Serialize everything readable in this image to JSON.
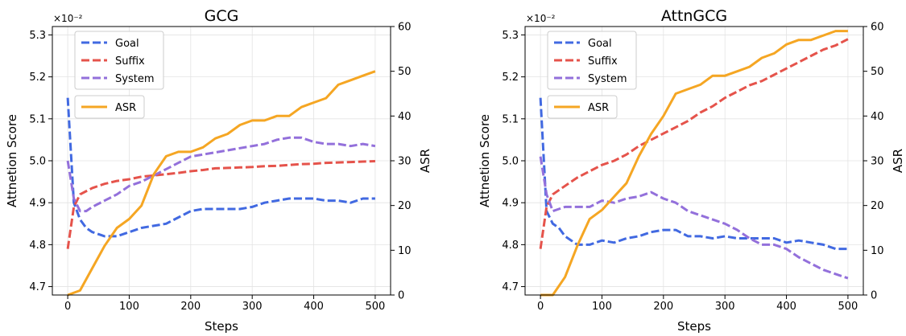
{
  "chart_data": [
    {
      "type": "line",
      "title": "GCG",
      "xlabel": "Steps",
      "ylabel": "Attnetion Score",
      "y2label": "ASR",
      "y_multiplier": "×10⁻²",
      "xlim": [
        -25,
        525
      ],
      "ylim": [
        4.68,
        5.32
      ],
      "y2lim": [
        0,
        60
      ],
      "xticks": [
        0,
        100,
        200,
        300,
        400,
        500
      ],
      "yticks": [
        4.7,
        4.8,
        4.9,
        5.0,
        5.1,
        5.2,
        5.3
      ],
      "y2ticks": [
        0,
        10,
        20,
        30,
        40,
        50,
        60
      ],
      "grid": true,
      "legend_position": "top-left",
      "series": [
        {
          "name": "Goal",
          "axis": "left",
          "style": "dashed",
          "color": "#4169E1",
          "x": [
            0,
            10,
            20,
            30,
            40,
            60,
            80,
            100,
            120,
            140,
            160,
            180,
            200,
            220,
            240,
            260,
            280,
            300,
            320,
            340,
            360,
            380,
            400,
            420,
            440,
            460,
            480,
            500
          ],
          "y": [
            5.15,
            4.9,
            4.86,
            4.84,
            4.83,
            4.82,
            4.82,
            4.83,
            4.84,
            4.845,
            4.85,
            4.865,
            4.88,
            4.885,
            4.885,
            4.885,
            4.885,
            4.89,
            4.9,
            4.905,
            4.91,
            4.91,
            4.91,
            4.905,
            4.905,
            4.9,
            4.91,
            4.91
          ]
        },
        {
          "name": "Suffix",
          "axis": "left",
          "style": "dashed",
          "color": "#E5534B",
          "x": [
            0,
            10,
            20,
            40,
            60,
            80,
            100,
            120,
            140,
            160,
            180,
            200,
            220,
            240,
            260,
            280,
            300,
            320,
            340,
            360,
            380,
            400,
            420,
            440,
            460,
            480,
            500
          ],
          "y": [
            4.79,
            4.89,
            4.92,
            4.935,
            4.945,
            4.952,
            4.956,
            4.962,
            4.965,
            4.968,
            4.971,
            4.975,
            4.978,
            4.982,
            4.983,
            4.984,
            4.985,
            4.987,
            4.988,
            4.99,
            4.992,
            4.993,
            4.995,
            4.996,
            4.997,
            4.998,
            4.999
          ]
        },
        {
          "name": "System",
          "axis": "left",
          "style": "dashed",
          "color": "#9370DB",
          "x": [
            0,
            10,
            20,
            30,
            40,
            60,
            80,
            100,
            120,
            140,
            160,
            180,
            200,
            220,
            240,
            260,
            280,
            300,
            320,
            340,
            360,
            380,
            400,
            420,
            440,
            460,
            480,
            500
          ],
          "y": [
            5.0,
            4.91,
            4.88,
            4.88,
            4.89,
            4.905,
            4.92,
            4.94,
            4.95,
            4.965,
            4.98,
            4.995,
            5.01,
            5.015,
            5.02,
            5.025,
            5.03,
            5.035,
            5.04,
            5.05,
            5.055,
            5.055,
            5.045,
            5.04,
            5.04,
            5.035,
            5.04,
            5.035
          ]
        },
        {
          "name": "ASR",
          "axis": "right",
          "style": "solid",
          "color": "#F5A623",
          "x": [
            0,
            20,
            40,
            60,
            80,
            100,
            120,
            140,
            160,
            180,
            200,
            220,
            240,
            260,
            280,
            300,
            320,
            340,
            360,
            380,
            400,
            420,
            440,
            460,
            480,
            500
          ],
          "y": [
            0,
            1,
            6,
            11,
            15,
            17,
            20,
            27,
            31,
            32,
            32,
            33,
            35,
            36,
            38,
            39,
            39,
            40,
            40,
            42,
            43,
            44,
            47,
            48,
            49,
            50
          ]
        }
      ]
    },
    {
      "type": "line",
      "title": "AttnGCG",
      "xlabel": "Steps",
      "ylabel": "Attnetion Score",
      "y2label": "ASR",
      "y_multiplier": "×10⁻²",
      "xlim": [
        -25,
        525
      ],
      "ylim": [
        4.68,
        5.32
      ],
      "y2lim": [
        0,
        60
      ],
      "xticks": [
        0,
        100,
        200,
        300,
        400,
        500
      ],
      "yticks": [
        4.7,
        4.8,
        4.9,
        5.0,
        5.1,
        5.2,
        5.3
      ],
      "y2ticks": [
        0,
        10,
        20,
        30,
        40,
        50,
        60
      ],
      "grid": true,
      "legend_position": "top-left",
      "series": [
        {
          "name": "Goal",
          "axis": "left",
          "style": "dashed",
          "color": "#4169E1",
          "x": [
            0,
            10,
            20,
            30,
            40,
            60,
            80,
            100,
            120,
            140,
            160,
            180,
            200,
            220,
            240,
            260,
            280,
            300,
            320,
            340,
            360,
            380,
            400,
            420,
            440,
            460,
            480,
            500
          ],
          "y": [
            5.15,
            4.88,
            4.85,
            4.84,
            4.82,
            4.8,
            4.8,
            4.81,
            4.805,
            4.815,
            4.82,
            4.83,
            4.835,
            4.835,
            4.82,
            4.82,
            4.815,
            4.82,
            4.815,
            4.815,
            4.815,
            4.815,
            4.805,
            4.81,
            4.805,
            4.8,
            4.79,
            4.79
          ]
        },
        {
          "name": "Suffix",
          "axis": "left",
          "style": "dashed",
          "color": "#E5534B",
          "x": [
            0,
            10,
            20,
            40,
            60,
            80,
            100,
            120,
            140,
            160,
            180,
            200,
            220,
            240,
            260,
            280,
            300,
            320,
            340,
            360,
            380,
            400,
            420,
            440,
            460,
            480,
            500
          ],
          "y": [
            4.79,
            4.89,
            4.92,
            4.94,
            4.96,
            4.975,
            4.99,
            5.0,
            5.015,
            5.035,
            5.05,
            5.065,
            5.08,
            5.095,
            5.115,
            5.13,
            5.15,
            5.165,
            5.18,
            5.19,
            5.205,
            5.22,
            5.235,
            5.25,
            5.265,
            5.275,
            5.29
          ]
        },
        {
          "name": "System",
          "axis": "left",
          "style": "dashed",
          "color": "#9370DB",
          "x": [
            0,
            10,
            20,
            30,
            40,
            60,
            80,
            100,
            120,
            140,
            160,
            180,
            200,
            220,
            240,
            260,
            280,
            300,
            320,
            340,
            360,
            380,
            400,
            420,
            440,
            460,
            480,
            500
          ],
          "y": [
            5.01,
            4.92,
            4.88,
            4.885,
            4.89,
            4.89,
            4.89,
            4.905,
            4.9,
            4.91,
            4.915,
            4.925,
            4.91,
            4.9,
            4.88,
            4.87,
            4.86,
            4.85,
            4.835,
            4.815,
            4.8,
            4.8,
            4.79,
            4.77,
            4.755,
            4.74,
            4.73,
            4.72
          ]
        },
        {
          "name": "ASR",
          "axis": "right",
          "style": "solid",
          "color": "#F5A623",
          "x": [
            0,
            20,
            40,
            60,
            80,
            100,
            120,
            140,
            160,
            180,
            200,
            220,
            240,
            260,
            280,
            300,
            320,
            340,
            360,
            380,
            400,
            420,
            440,
            460,
            480,
            500
          ],
          "y": [
            0,
            0,
            4,
            11,
            17,
            19,
            22,
            25,
            31,
            36,
            40,
            45,
            46,
            47,
            49,
            49,
            50,
            51,
            53,
            54,
            56,
            57,
            57,
            58,
            59,
            59
          ]
        }
      ]
    }
  ]
}
